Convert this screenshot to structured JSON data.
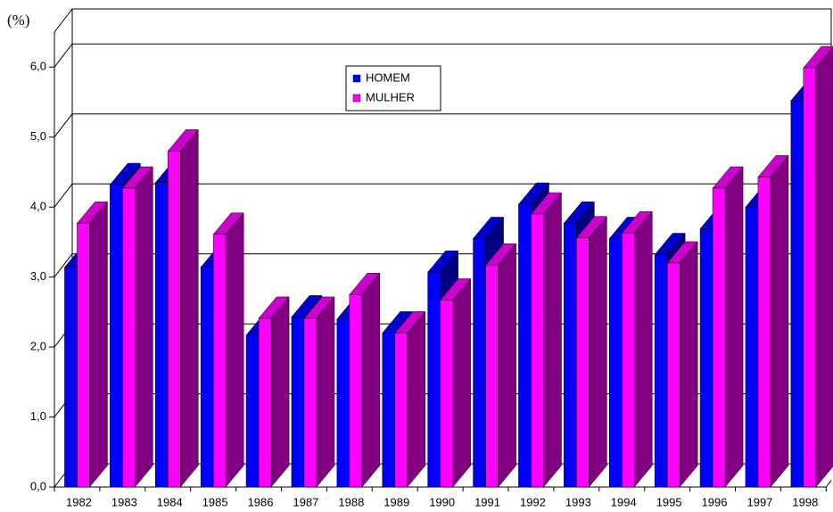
{
  "chart_data": {
    "type": "bar3d",
    "y_label": "(%)",
    "categories": [
      "1982",
      "1983",
      "1984",
      "1985",
      "1986",
      "1987",
      "1988",
      "1989",
      "1990",
      "1991",
      "1992",
      "1993",
      "1994",
      "1995",
      "1996",
      "1997",
      "1998"
    ],
    "series": [
      {
        "name": "HOMEM",
        "color": "#0000ff",
        "side_color": "#000080",
        "top_color": "#0000cc",
        "values": [
          3.14,
          4.32,
          4.35,
          3.14,
          2.17,
          2.43,
          2.4,
          2.2,
          3.07,
          3.55,
          4.04,
          3.77,
          3.55,
          3.32,
          3.69,
          4.0,
          5.52
        ]
      },
      {
        "name": "MULHER",
        "color": "#ff00ff",
        "side_color": "#800080",
        "top_color": "#cc00cc",
        "values": [
          3.77,
          4.27,
          4.8,
          3.61,
          2.41,
          2.41,
          2.75,
          2.2,
          2.67,
          3.17,
          3.9,
          3.56,
          3.63,
          3.2,
          4.27,
          4.43,
          5.99
        ]
      }
    ],
    "ylim": [
      0,
      6.5
    ],
    "yticks": [
      {
        "value": 0,
        "label": "0,0"
      },
      {
        "value": 1,
        "label": "1,0"
      },
      {
        "value": 2,
        "label": "2,0"
      },
      {
        "value": 3,
        "label": "3,0"
      },
      {
        "value": 4,
        "label": "4,0"
      },
      {
        "value": 5,
        "label": "5,0"
      },
      {
        "value": 6,
        "label": "6,0"
      }
    ],
    "grid": true
  }
}
